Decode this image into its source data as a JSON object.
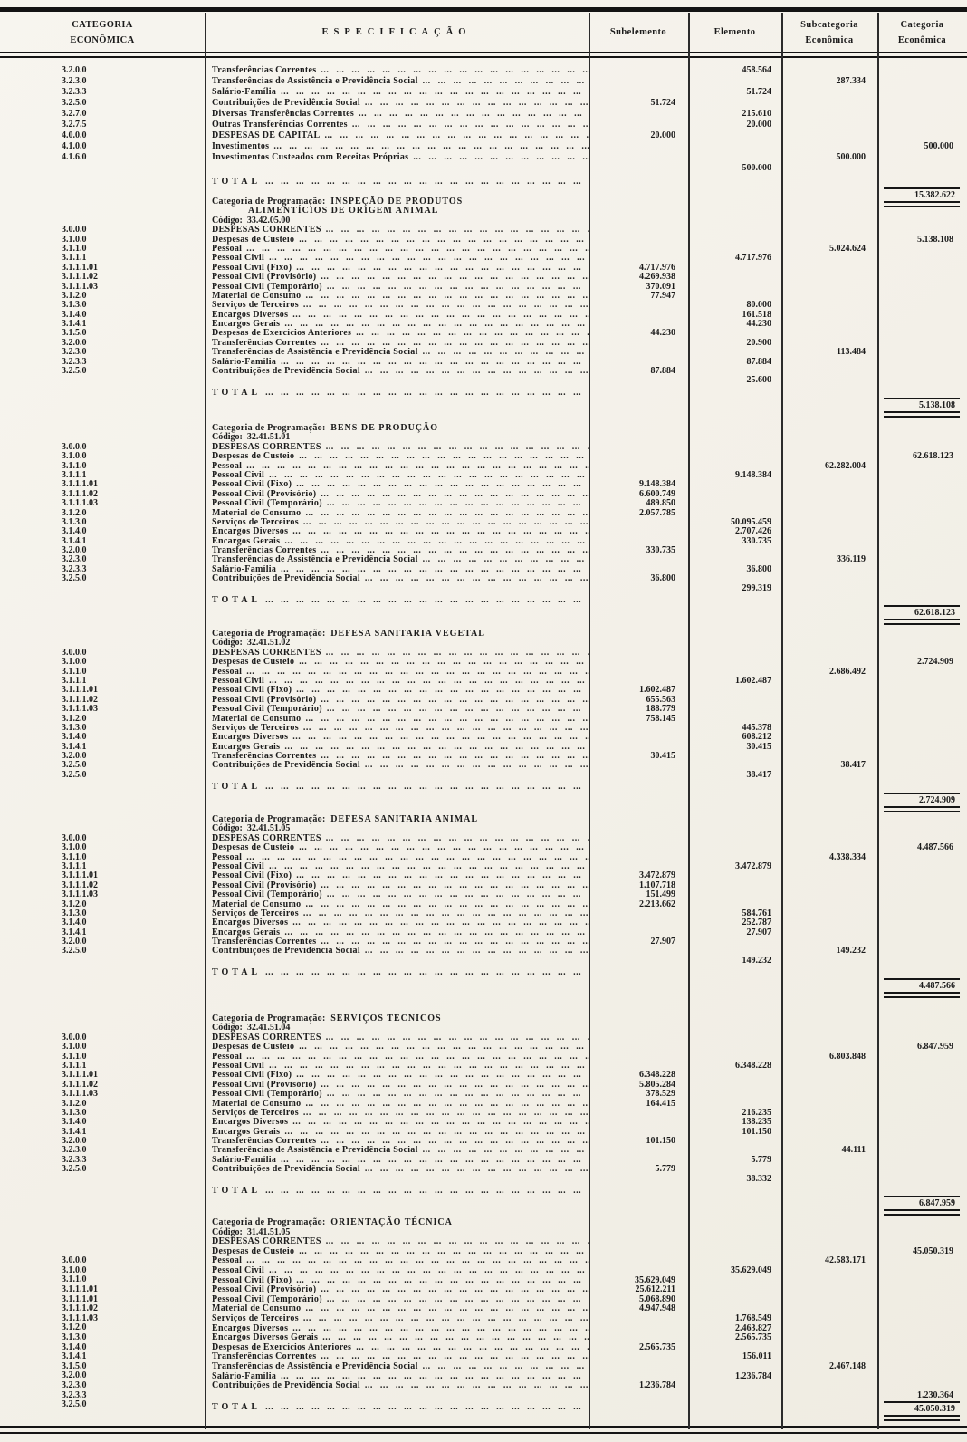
{
  "header": {
    "col_categoria_line1": "CATEGORIA",
    "col_categoria_line2": "ECONÔMICA",
    "col_especificacao": "ESPECIFICAÇÃO",
    "col_subelemento": "Subelemento",
    "col_elemento": "Elemento",
    "col_subcategoria_line1": "Subcategoria",
    "col_subcategoria_line2": "Econômica",
    "col_categoria_econ_line1": "Categoria",
    "col_categoria_econ_line2": "Econômica"
  },
  "labels": {
    "categoria_programacao": "Categoria de Programação:",
    "codigo": "Código:",
    "total": "TOTAL"
  },
  "sections": [
    {
      "title_lines": [],
      "code": "",
      "rows": [
        {
          "code": "3.2.0.0",
          "label": "Transferências Correntes",
          "b": 1,
          "elem": "458.564"
        },
        {
          "code": "3.2.3.0",
          "label": "Transferências de Assistência e Previdência Social",
          "subcat": "287.334"
        },
        {
          "code": "3.2.3.3",
          "label": "Salário-Família",
          "elem": "51.724"
        },
        {
          "code": "3.2.5.0",
          "label": "Contribuições de Previdência Social",
          "sub": "51.724"
        },
        {
          "code": "3.2.7.0",
          "label": "Diversas Transferências Correntes",
          "elem": "215.610"
        },
        {
          "code": "3.2.7.5",
          "label": "Outras Transferências Correntes",
          "elem": "20.000"
        },
        {
          "code": "4.0.0.0",
          "label": "DESPESAS DE CAPITAL",
          "sub": "20.000"
        },
        {
          "code": "4.1.0.0",
          "label": "Investimentos",
          "b": 1,
          "cat": "500.000"
        },
        {
          "code": "4.1.6.0",
          "label": "Investimentos Custeados com Receitas Próprias",
          "subcat": "500.000"
        },
        {
          "code": "",
          "label": "",
          "elem": "500.000"
        }
      ],
      "total": "15.382.622"
    },
    {
      "title_lines": [
        "INSPEÇÃO DE PRODUTOS",
        "ALIMENTÍCIOS DE ORIGEM ANIMAL"
      ],
      "code": "33.42.05.00",
      "rows": [
        {
          "code": "3.0.0.0",
          "label": "DESPESAS CORRENTES"
        },
        {
          "code": "3.1.0.0",
          "label": "Despesas de Custeio",
          "b": 1,
          "cat": "5.138.108"
        },
        {
          "code": "3.1.1.0",
          "label": "Pessoal",
          "subcat": "5.024.624"
        },
        {
          "code": "3.1.1.1",
          "label": "Pessoal Civil",
          "elem": "4.717.976"
        },
        {
          "code": "3.1.1.1.01",
          "label": "Pessoal Civil (Fixo)",
          "sub": "4.717.976"
        },
        {
          "code": "3.1.1.1.02",
          "label": "Pessoal Civil (Provisório)",
          "sub": "4.269.938"
        },
        {
          "code": "3.1.1.1.03",
          "label": "Pessoal Civil (Temporário)",
          "sub": "370.091"
        },
        {
          "code": "3.1.2.0",
          "label": "Material de Consumo",
          "sub": "77.947"
        },
        {
          "code": "3.1.3.0",
          "label": "Serviços de Terceiros",
          "elem": "80.000"
        },
        {
          "code": "3.1.4.0",
          "label": "Encargos Diversos",
          "elem": "161.518"
        },
        {
          "code": "3.1.4.1",
          "label": "Encargos Gerais",
          "elem": "44.230"
        },
        {
          "code": "3.1.5.0",
          "label": "Despesas de Exercícios Anteriores",
          "sub": "44.230"
        },
        {
          "code": "3.2.0.0",
          "label": "Transferências Correntes",
          "b": 1,
          "elem": "20.900"
        },
        {
          "code": "3.2.3.0",
          "label": "Transferências de Assistência e Previdência Social",
          "subcat": "113.484"
        },
        {
          "code": "3.2.3.3",
          "label": "Salário-Família",
          "elem": "87.884"
        },
        {
          "code": "3.2.5.0",
          "label": "Contribuições de Previdência Social",
          "sub": "87.884"
        },
        {
          "code": "",
          "label": "",
          "elem": "25.600"
        }
      ],
      "total": "5.138.108"
    },
    {
      "title_lines": [
        "BENS DE PRODUÇÃO"
      ],
      "code": "32.41.51.01",
      "rows": [
        {
          "code": "3.0.0.0",
          "label": "DESPESAS CORRENTES"
        },
        {
          "code": "3.1.0.0",
          "label": "Despesas de Custeio",
          "b": 1,
          "cat": "62.618.123"
        },
        {
          "code": "3.1.1.0",
          "label": "Pessoal",
          "subcat": "62.282.004"
        },
        {
          "code": "3.1.1.1",
          "label": "Pessoal Civil",
          "elem": "9.148.384"
        },
        {
          "code": "3.1.1.1.01",
          "label": "Pessoal Civil (Fixo)",
          "sub": "9.148.384"
        },
        {
          "code": "3.1.1.1.02",
          "label": "Pessoal Civil (Provisório)",
          "sub": "6.600.749"
        },
        {
          "code": "3.1.1.1.03",
          "label": "Pessoal Civil (Temporário)",
          "sub": "489.850"
        },
        {
          "code": "3.1.2.0",
          "label": "Material de Consumo",
          "sub": "2.057.785"
        },
        {
          "code": "3.1.3.0",
          "label": "Serviços de Terceiros",
          "elem": "50.095.459"
        },
        {
          "code": "3.1.4.0",
          "label": "Encargos Diversos",
          "elem": "2.707.426"
        },
        {
          "code": "3.1.4.1",
          "label": "Encargos Gerais",
          "elem": "330.735"
        },
        {
          "code": "3.2.0.0",
          "label": "Transferências Correntes",
          "b": 1,
          "sub": "330.735"
        },
        {
          "code": "3.2.3.0",
          "label": "Transferências de Assistência e Previdência Social",
          "subcat": "336.119"
        },
        {
          "code": "3.2.3.3",
          "label": "Salário-Família",
          "elem": "36.800"
        },
        {
          "code": "3.2.5.0",
          "label": "Contribuições de Previdência Social",
          "sub": "36.800"
        },
        {
          "code": "",
          "label": "",
          "elem": "299.319"
        }
      ],
      "total": "62.618.123"
    },
    {
      "title_lines": [
        "DEFESA SANITARIA VEGETAL"
      ],
      "code": "32.41.51.02",
      "rows": [
        {
          "code": "3.0.0.0",
          "label": "DESPESAS CORRENTES"
        },
        {
          "code": "3.1.0.0",
          "label": "Despesas de Custeio",
          "b": 1,
          "cat": "2.724.909"
        },
        {
          "code": "3.1.1.0",
          "label": "Pessoal",
          "subcat": "2.686.492"
        },
        {
          "code": "3.1.1.1",
          "label": "Pessoal Civil",
          "elem": "1.602.487"
        },
        {
          "code": "3.1.1.1.01",
          "label": "Pessoal Civil (Fixo)",
          "sub": "1.602.487"
        },
        {
          "code": "3.1.1.1.02",
          "label": "Pessoal Civil (Provisório)",
          "sub": "655.563"
        },
        {
          "code": "3.1.1.1.03",
          "label": "Pessoal Civil (Temporário)",
          "sub": "188.779"
        },
        {
          "code": "3.1.2.0",
          "label": "Material de Consumo",
          "sub": "758.145"
        },
        {
          "code": "3.1.3.0",
          "label": "Serviços de Terceiros",
          "elem": "445.378"
        },
        {
          "code": "3.1.4.0",
          "label": "Encargos Diversos",
          "elem": "608.212"
        },
        {
          "code": "3.1.4.1",
          "label": "Encargos Gerais",
          "elem": "30.415"
        },
        {
          "code": "3.2.0.0",
          "label": "Transferências Correntes",
          "b": 1,
          "sub": "30.415"
        },
        {
          "code": "3.2.5.0",
          "label": "Contribuições de Previdência Social",
          "subcat": "38.417"
        },
        {
          "code": "3.2.5.0",
          "label": "",
          "elem": "38.417"
        }
      ],
      "total": "2.724.909"
    },
    {
      "title_lines": [
        "DEFESA SANITARIA ANIMAL"
      ],
      "code": "32.41.51.05",
      "rows": [
        {
          "code": "3.0.0.0",
          "label": "DESPESAS CORRENTES"
        },
        {
          "code": "3.1.0.0",
          "label": "Despesas de Custeio",
          "b": 1,
          "cat": "4.487.566"
        },
        {
          "code": "3.1.1.0",
          "label": "Pessoal",
          "subcat": "4.338.334"
        },
        {
          "code": "3.1.1.1",
          "label": "Pessoal Civil",
          "elem": "3.472.879"
        },
        {
          "code": "3.1.1.1.01",
          "label": "Pessoal Civil (Fixo)",
          "sub": "3.472.879"
        },
        {
          "code": "3.1.1.1.02",
          "label": "Pessoal Civil (Provisório)",
          "sub": "1.107.718"
        },
        {
          "code": "3.1.1.1.03",
          "label": "Pessoal Civil (Temporário)",
          "sub": "151.499"
        },
        {
          "code": "3.1.2.0",
          "label": "Material de Consumo",
          "sub": "2.213.662"
        },
        {
          "code": "3.1.3.0",
          "label": "Serviços de Terceiros",
          "elem": "584.761"
        },
        {
          "code": "3.1.4.0",
          "label": "Encargos Diversos",
          "elem": "252.787"
        },
        {
          "code": "3.1.4.1",
          "label": "Encargos Gerais",
          "elem": "27.907"
        },
        {
          "code": "3.2.0.0",
          "label": "Transferências Correntes",
          "b": 1,
          "sub": "27.907"
        },
        {
          "code": "3.2.5.0",
          "label": "Contribuições de Previdência Social",
          "subcat": "149.232"
        },
        {
          "code": "",
          "label": "",
          "elem": "149.232"
        }
      ],
      "total": "4.487.566"
    },
    {
      "title_lines": [
        "SERVIÇOS TECNICOS"
      ],
      "code": "32.41.51.04",
      "rows": [
        {
          "code": "3.0.0.0",
          "label": "DESPESAS CORRENTES"
        },
        {
          "code": "3.1.0.0",
          "label": "Despesas de Custeio",
          "b": 1,
          "cat": "6.847.959"
        },
        {
          "code": "3.1.1.0",
          "label": "Pessoal",
          "subcat": "6.803.848"
        },
        {
          "code": "3.1.1.1",
          "label": "Pessoal Civil",
          "elem": "6.348.228"
        },
        {
          "code": "3.1.1.1.01",
          "label": "Pessoal Civil (Fixo)",
          "sub": "6.348.228"
        },
        {
          "code": "3.1.1.1.02",
          "label": "Pessoal Civil (Provisório)",
          "sub": "5.805.284"
        },
        {
          "code": "3.1.1.1.03",
          "label": "Pessoal Civil (Temporário)",
          "sub": "378.529"
        },
        {
          "code": "3.1.2.0",
          "label": "Material de Consumo",
          "sub": "164.415"
        },
        {
          "code": "3.1.3.0",
          "label": "Serviços de Terceiros",
          "elem": "216.235"
        },
        {
          "code": "3.1.4.0",
          "label": "Encargos Diversos",
          "elem": "138.235"
        },
        {
          "code": "3.1.4.1",
          "label": "Encargos Gerais",
          "elem": "101.150"
        },
        {
          "code": "3.2.0.0",
          "label": "Transferências Correntes",
          "b": 1,
          "sub": "101.150"
        },
        {
          "code": "3.2.3.0",
          "label": "Transferências de Assistência e Previdência Social",
          "subcat": "44.111"
        },
        {
          "code": "3.2.3.3",
          "label": "Salário-Família",
          "elem": "5.779"
        },
        {
          "code": "3.2.5.0",
          "label": "Contribuições de Previdência Social",
          "sub": "5.779"
        },
        {
          "code": "",
          "label": "",
          "elem": "38.332"
        }
      ],
      "total": "6.847.959"
    },
    {
      "title_lines": [
        "ORIENTAÇÃO TÉCNICA"
      ],
      "code": "31.41.51.05",
      "rows": [
        {
          "code": "3.0.0.0",
          "label": "DESPESAS CORRENTES"
        },
        {
          "code": "3.1.0.0",
          "label": "Despesas de Custeio",
          "b": 1,
          "cat": "45.050.319"
        },
        {
          "code": "3.1.1.0",
          "label": "Pessoal",
          "subcat": "42.583.171"
        },
        {
          "code": "3.1.1.1.01",
          "label": "Pessoal Civil",
          "elem": "35.629.049"
        },
        {
          "code": "3.1.1.1.01",
          "label": "Pessoal Civil (Fixo)",
          "sub": "35.629.049"
        },
        {
          "code": "3.1.1.1.02",
          "label": "Pessoal Civil (Provisório)",
          "sub": "25.612.211"
        },
        {
          "code": "3.1.1.1.03",
          "label": "Pessoal Civil (Temporário)",
          "sub": "5.068.890"
        },
        {
          "code": "3.1.2.0",
          "label": "Material de Consumo",
          "sub": "4.947.948"
        },
        {
          "code": "3.1.3.0",
          "label": "Serviços de Terceiros",
          "elem": "1.768.549"
        },
        {
          "code": "3.1.4.0",
          "label": "Encargos Diversos",
          "elem": "2.463.827"
        },
        {
          "code": "3.1.4.1",
          "label": "Encargos Diversos Gerais",
          "elem": "2.565.735"
        },
        {
          "code": "3.1.5.0",
          "label": "Despesas de Exercícios Anteriores",
          "sub": "2.565.735"
        },
        {
          "code": "3.2.0.0",
          "label": "Transferências Correntes",
          "b": 1,
          "elem": "156.011"
        },
        {
          "code": "3.2.3.0",
          "label": "Transferências de Assistência e Previdência Social",
          "subcat": "2.467.148"
        },
        {
          "code": "3.2.3.3",
          "label": "Salário-Família",
          "elem": "1.236.784"
        },
        {
          "code": "3.2.5.0",
          "label": "Contribuições de Previdência Social",
          "sub": "1.236.784"
        },
        {
          "code": "",
          "label": "",
          "cat": "1.230.364"
        }
      ],
      "total": "45.050.319"
    }
  ]
}
